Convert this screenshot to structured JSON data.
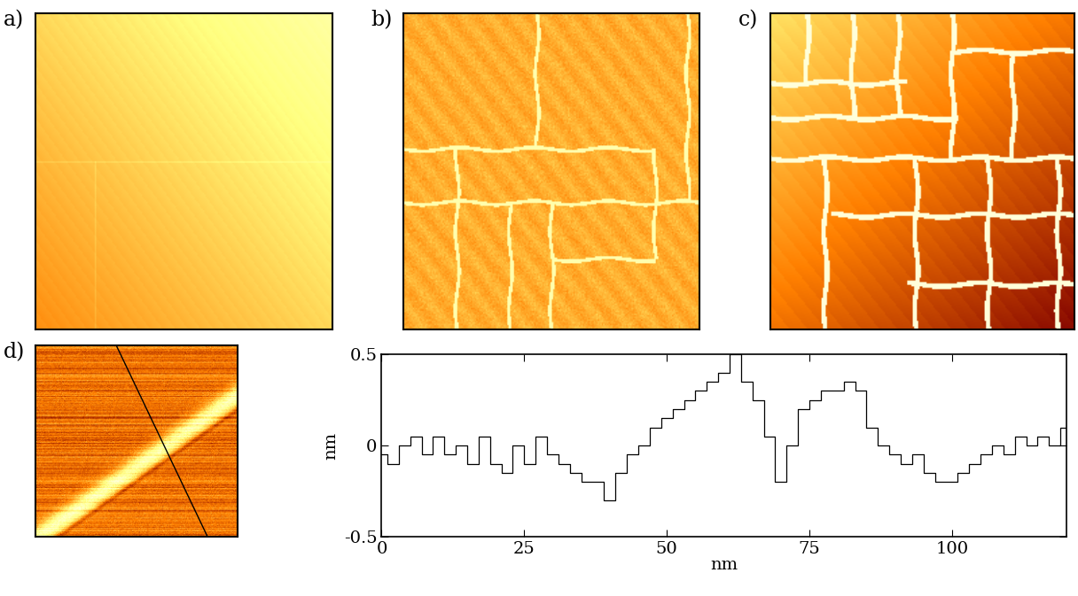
{
  "panel_labels": [
    "a)",
    "b)",
    "c)",
    "d)"
  ],
  "chart_data": {
    "type": "line",
    "color": "#000000",
    "xlabel": "nm",
    "ylabel": "nm",
    "x": [
      0,
      2,
      4,
      6,
      8,
      10,
      12,
      14,
      16,
      18,
      20,
      22,
      24,
      26,
      28,
      30,
      32,
      34,
      36,
      38,
      40,
      42,
      44,
      46,
      48,
      50,
      52,
      54,
      56,
      58,
      60,
      62,
      64,
      66,
      68,
      70,
      72,
      74,
      76,
      78,
      80,
      82,
      84,
      86,
      88,
      90,
      92,
      94,
      96,
      98,
      100,
      102,
      104,
      106,
      108,
      110,
      112,
      114,
      116,
      118,
      120
    ],
    "values": [
      -0.05,
      -0.1,
      0.0,
      0.05,
      -0.05,
      0.05,
      -0.05,
      0.0,
      -0.1,
      0.05,
      -0.1,
      -0.15,
      0.0,
      -0.1,
      0.05,
      -0.05,
      -0.1,
      -0.15,
      -0.2,
      -0.2,
      -0.3,
      -0.15,
      -0.05,
      0.0,
      0.1,
      0.15,
      0.2,
      0.25,
      0.3,
      0.35,
      0.4,
      0.5,
      0.35,
      0.25,
      0.05,
      -0.2,
      0.0,
      0.2,
      0.25,
      0.3,
      0.3,
      0.35,
      0.3,
      0.1,
      0.0,
      -0.05,
      -0.1,
      -0.05,
      -0.15,
      -0.2,
      -0.2,
      -0.15,
      -0.1,
      -0.05,
      0.0,
      -0.05,
      0.05,
      0.0,
      0.05,
      0.0,
      0.1
    ],
    "xlim": [
      0,
      120
    ],
    "ylim": [
      -0.5,
      0.5
    ],
    "xticks": [
      0,
      25,
      50,
      75,
      100
    ],
    "yticks": [
      -0.5,
      0,
      0.5
    ]
  }
}
